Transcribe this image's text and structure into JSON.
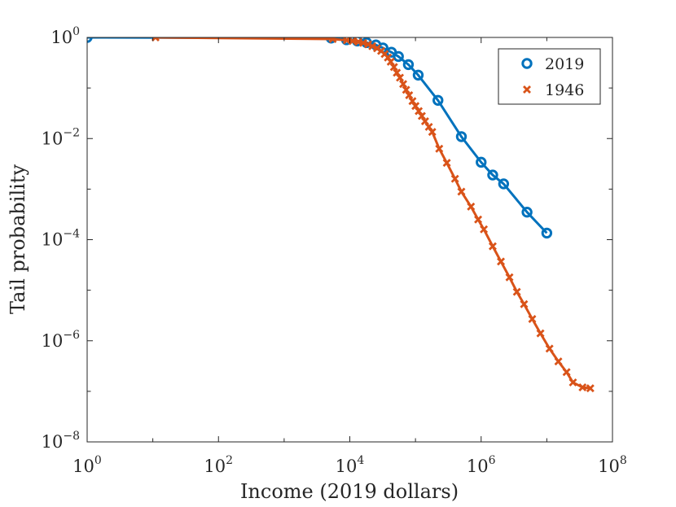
{
  "chart_data": {
    "type": "line",
    "title": "",
    "xlabel": "Income (2019 dollars)",
    "ylabel": "Tail probability",
    "xscale": "log",
    "yscale": "log",
    "xlim": [
      1,
      100000000
    ],
    "ylim": [
      1e-08,
      1
    ],
    "grid": false,
    "legend_position": "top-right",
    "xticks": [
      {
        "value": 1,
        "base": "10",
        "exp": "0"
      },
      {
        "value": 100,
        "base": "10",
        "exp": "2"
      },
      {
        "value": 10000,
        "base": "10",
        "exp": "4"
      },
      {
        "value": 1000000,
        "base": "10",
        "exp": "6"
      },
      {
        "value": 100000000,
        "base": "10",
        "exp": "8"
      }
    ],
    "yticks": [
      {
        "value": 1,
        "base": "10",
        "exp": "0"
      },
      {
        "value": 0.01,
        "base": "10",
        "exp": "−2"
      },
      {
        "value": 0.0001,
        "base": "10",
        "exp": "−4"
      },
      {
        "value": 1e-06,
        "base": "10",
        "exp": "−6"
      },
      {
        "value": 1e-08,
        "base": "10",
        "exp": "−8"
      }
    ],
    "series": [
      {
        "name": "2019",
        "color": "#0072BD",
        "marker": "circle",
        "points": [
          [
            1,
            1.0
          ],
          [
            5200,
            0.97
          ],
          [
            8900,
            0.9
          ],
          [
            13000,
            0.85
          ],
          [
            18000,
            0.79
          ],
          [
            25000,
            0.71
          ],
          [
            32000,
            0.62
          ],
          [
            43000,
            0.51
          ],
          [
            55000,
            0.42
          ],
          [
            78000,
            0.29
          ],
          [
            110000,
            0.18
          ],
          [
            220000,
            0.057
          ],
          [
            500000,
            0.0109
          ],
          [
            1000000,
            0.0034
          ],
          [
            1500000,
            0.0019
          ],
          [
            2200000,
            0.00127
          ],
          [
            5000000,
            0.00035
          ],
          [
            10000000,
            0.000135
          ]
        ]
      },
      {
        "name": "1946",
        "color": "#D95319",
        "marker": "x",
        "points": [
          [
            11,
            1.0
          ],
          [
            5500,
            0.93
          ],
          [
            9000,
            0.88
          ],
          [
            11000,
            0.85
          ],
          [
            13500,
            0.82
          ],
          [
            16000,
            0.78
          ],
          [
            19000,
            0.73
          ],
          [
            22000,
            0.67
          ],
          [
            26000,
            0.61
          ],
          [
            30000,
            0.54
          ],
          [
            34000,
            0.47
          ],
          [
            38000,
            0.4
          ],
          [
            42000,
            0.33
          ],
          [
            47000,
            0.26
          ],
          [
            52000,
            0.2
          ],
          [
            58000,
            0.16
          ],
          [
            65000,
            0.12
          ],
          [
            72000,
            0.092
          ],
          [
            80000,
            0.072
          ],
          [
            90000,
            0.055
          ],
          [
            100000,
            0.044
          ],
          [
            112000,
            0.035
          ],
          [
            125000,
            0.028
          ],
          [
            140000,
            0.022
          ],
          [
            160000,
            0.017
          ],
          [
            180000,
            0.0135
          ],
          [
            230000,
            0.0063
          ],
          [
            300000,
            0.0033
          ],
          [
            400000,
            0.0016
          ],
          [
            500000,
            0.00089
          ],
          [
            700000,
            0.00045
          ],
          [
            900000,
            0.00025
          ],
          [
            1100000,
            0.00016
          ],
          [
            1500000,
            7.4e-05
          ],
          [
            2000000,
            3.7e-05
          ],
          [
            2700000,
            1.8e-05
          ],
          [
            3500000,
            9.3e-06
          ],
          [
            4500000,
            5.3e-06
          ],
          [
            6000000,
            2.7e-06
          ],
          [
            8000000,
            1.4e-06
          ],
          [
            11000000,
            7e-07
          ],
          [
            15000000,
            3.9e-07
          ],
          [
            20000000,
            2.4e-07
          ],
          [
            25000000,
            1.5e-07
          ],
          [
            35000000,
            1.2e-07
          ],
          [
            46000000,
            1.15e-07
          ]
        ]
      }
    ]
  }
}
